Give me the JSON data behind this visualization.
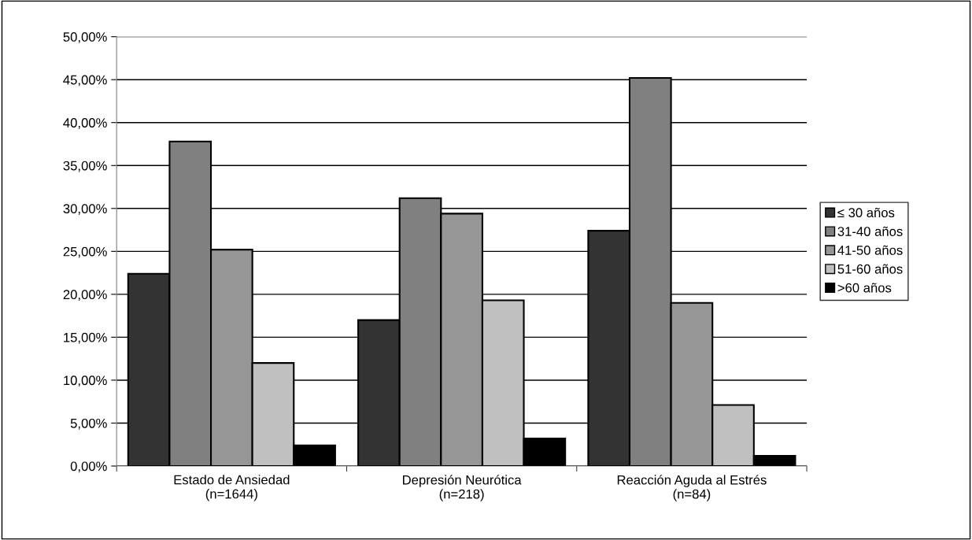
{
  "chart_data": {
    "type": "bar",
    "categories": [
      "Estado de Ansiedad\n(n=1644)",
      "Depresión Neurótica\n(n=218)",
      "Reacción Aguda al Estrés\n(n=84)"
    ],
    "series": [
      {
        "name": "≤ 30 años",
        "color": "#333333",
        "values": [
          22.4,
          17.0,
          27.4
        ]
      },
      {
        "name": "31-40 años",
        "color": "#808080",
        "values": [
          37.8,
          31.2,
          45.2
        ]
      },
      {
        "name": "41-50 años",
        "color": "#969696",
        "values": [
          25.2,
          29.4,
          19.0
        ]
      },
      {
        "name": "51-60 años",
        "color": "#c0c0c0",
        "values": [
          12.0,
          19.3,
          7.1
        ]
      },
      {
        "name": ">60 años",
        "color": "#000000",
        "values": [
          2.4,
          3.2,
          1.2
        ]
      }
    ],
    "ylim": [
      0,
      50
    ],
    "yticks": [
      {
        "value": 0,
        "label": "0,00%"
      },
      {
        "value": 5,
        "label": "5,00%"
      },
      {
        "value": 10,
        "label": "10,00%"
      },
      {
        "value": 15,
        "label": "15,00%"
      },
      {
        "value": 20,
        "label": "20,00%"
      },
      {
        "value": 25,
        "label": "25,00%"
      },
      {
        "value": 30,
        "label": "30,00%"
      },
      {
        "value": 35,
        "label": "35,00%"
      },
      {
        "value": 40,
        "label": "40,00%"
      },
      {
        "value": 45,
        "label": "45,00%"
      },
      {
        "value": 50,
        "label": "50,00%"
      }
    ],
    "grid": "y",
    "legend": "right"
  }
}
